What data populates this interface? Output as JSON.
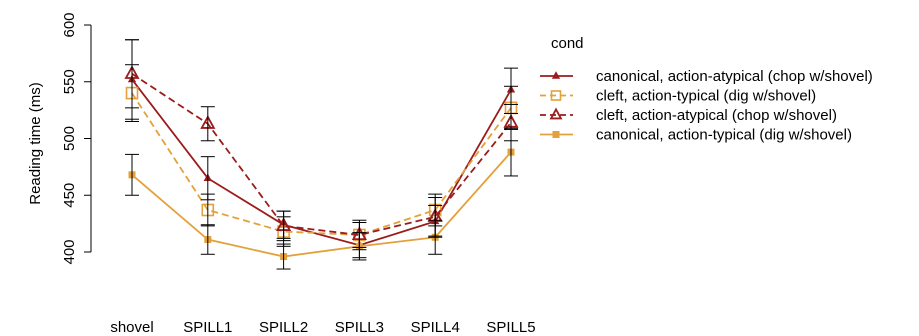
{
  "chart_data": {
    "type": "line",
    "title": "",
    "xlabel": "",
    "ylabel": "Reading time (ms)",
    "categories": [
      "shovel",
      "SPILL1",
      "SPILL2",
      "SPILL3",
      "SPILL4",
      "SPILL5"
    ],
    "yticks": [
      400,
      450,
      500,
      550,
      600
    ],
    "ylim": [
      400,
      600
    ],
    "grid": false,
    "legend": {
      "title": "cond",
      "position": "right"
    },
    "series": [
      {
        "name": "canonical, action-atypical (chop w/shovel)",
        "color": "#9b1c1c",
        "line": "solid",
        "marker": "filled-triangle",
        "values": [
          552,
          465,
          424,
          406,
          427,
          543
        ],
        "error": [
          [
            517,
            587
          ],
          [
            446,
            484
          ],
          [
            412,
            436
          ],
          [
            395,
            417
          ],
          [
            413,
            441
          ],
          [
            522,
            562
          ]
        ]
      },
      {
        "name": "cleft, action-typical (dig w/shovel)",
        "color": "#e3a13b",
        "line": "dashed",
        "marker": "open-square",
        "values": [
          540,
          437,
          418,
          415,
          437,
          527
        ],
        "error": [
          [
            515,
            565
          ],
          [
            423,
            451
          ],
          [
            405,
            431
          ],
          [
            404,
            426
          ],
          [
            423,
            451
          ],
          [
            508,
            546
          ]
        ]
      },
      {
        "name": "cleft, action-atypical (chop w/shovel)",
        "color": "#9b1c1c",
        "line": "dashed",
        "marker": "open-triangle",
        "values": [
          557,
          513,
          423,
          415,
          431,
          514
        ],
        "error": [
          [
            527,
            587
          ],
          [
            498,
            528
          ],
          [
            410,
            436
          ],
          [
            402,
            428
          ],
          [
            414,
            448
          ],
          [
            498,
            530
          ]
        ]
      },
      {
        "name": "canonical, action-typical (dig w/shovel)",
        "color": "#e3a13b",
        "line": "solid",
        "marker": "filled-square",
        "values": [
          468,
          411,
          396,
          405,
          413,
          488
        ],
        "error": [
          [
            450,
            486
          ],
          [
            398,
            424
          ],
          [
            385,
            407
          ],
          [
            393,
            417
          ],
          [
            398,
            428
          ],
          [
            467,
            509
          ]
        ]
      }
    ]
  }
}
